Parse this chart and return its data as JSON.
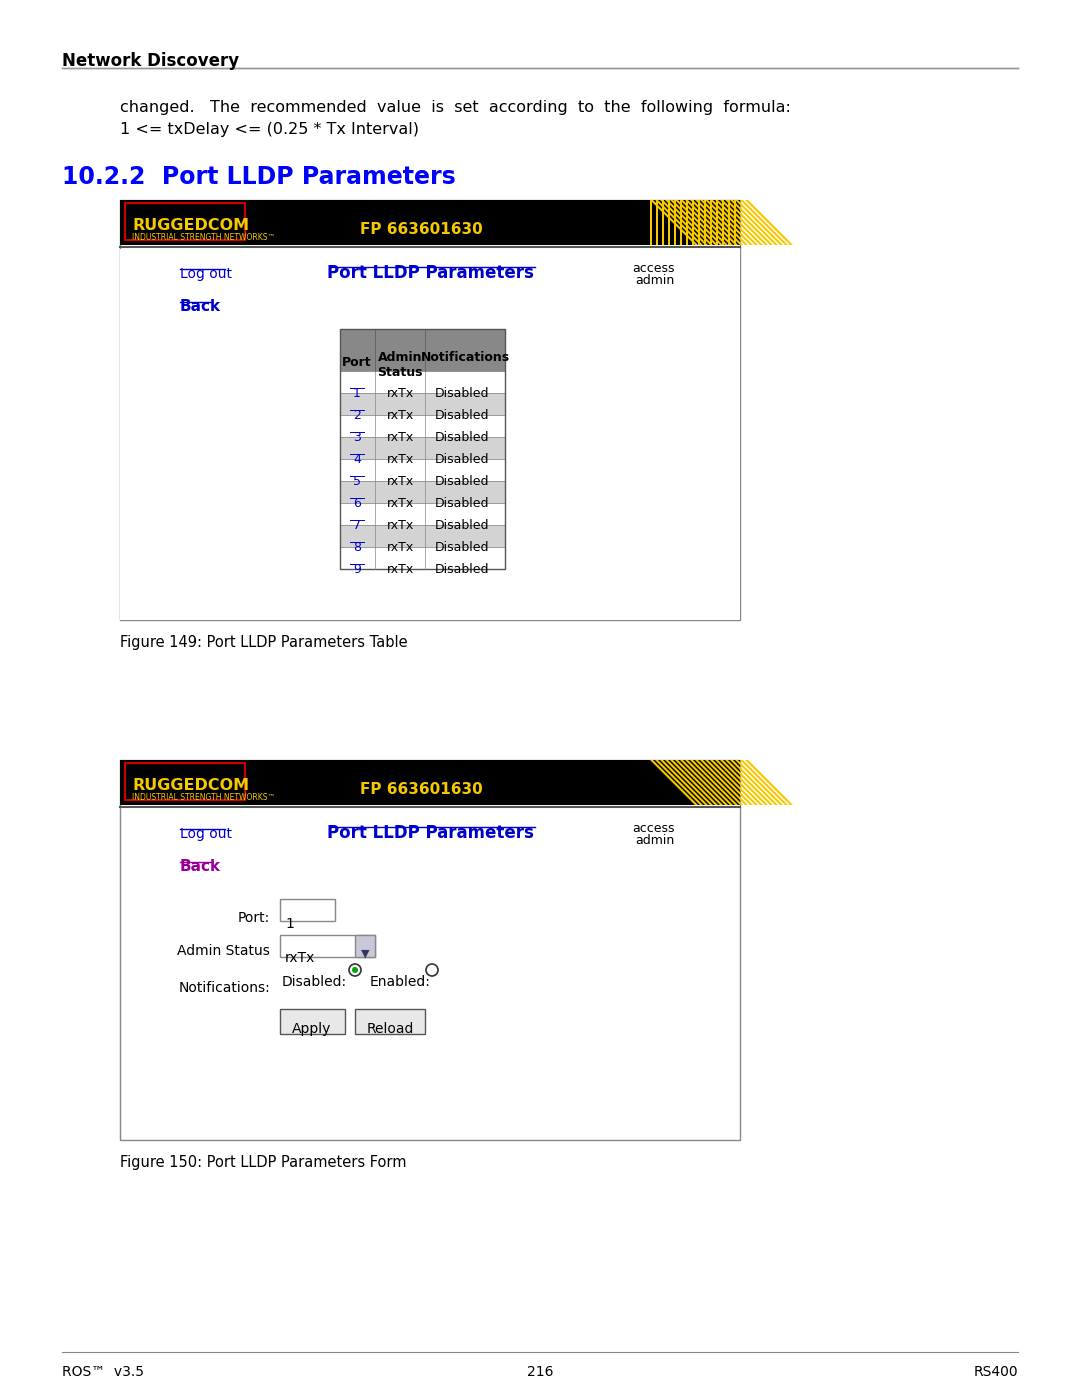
{
  "page_title_top": "Network Discovery",
  "section_title": "10.2.2  Port LLDP Parameters",
  "section_title_color": "#0000FF",
  "intro_text_line1": "changed.   The  recommended  value  is  set  according  to  the  following  formula:",
  "intro_text_line2": "1 <= txDelay <= (0.25 * Tx Interval)",
  "fp_text": "FP 663601630",
  "ruggedcom_text": "RUGGEDCOM",
  "industrial_text": "INDUSTRIAL STRENGTH NETWORKS™",
  "logout_text": "Log out",
  "page_heading": "Port LLDP Parameters",
  "access_text": "access\nadmin",
  "back_text": "Back",
  "table_headers": [
    "Port",
    "Admin\nStatus",
    "Notifications"
  ],
  "table_rows": [
    [
      "1",
      "rxTx",
      "Disabled"
    ],
    [
      "2",
      "rxTx",
      "Disabled"
    ],
    [
      "3",
      "rxTx",
      "Disabled"
    ],
    [
      "4",
      "rxTx",
      "Disabled"
    ],
    [
      "5",
      "rxTx",
      "Disabled"
    ],
    [
      "6",
      "rxTx",
      "Disabled"
    ],
    [
      "7",
      "rxTx",
      "Disabled"
    ],
    [
      "8",
      "rxTx",
      "Disabled"
    ],
    [
      "9",
      "rxTx",
      "Disabled"
    ]
  ],
  "figure1_caption": "Figure 149: Port LLDP Parameters Table",
  "figure2_caption": "Figure 150: Port LLDP Parameters Form",
  "footer_left": "ROS™  v3.5",
  "footer_center": "216",
  "footer_right": "RS400",
  "bg_color": "#ffffff",
  "header_bg": "#000000",
  "header_stripe": "#f5c800",
  "table_header_bg": "#808080",
  "table_row_alt_bg": "#d3d3d3",
  "table_row_bg": "#ffffff",
  "link_color": "#0000CC",
  "blue_link": "#0000EE",
  "back_color_form": "#990099",
  "body_text_color": "#000000",
  "border_color": "#888888"
}
